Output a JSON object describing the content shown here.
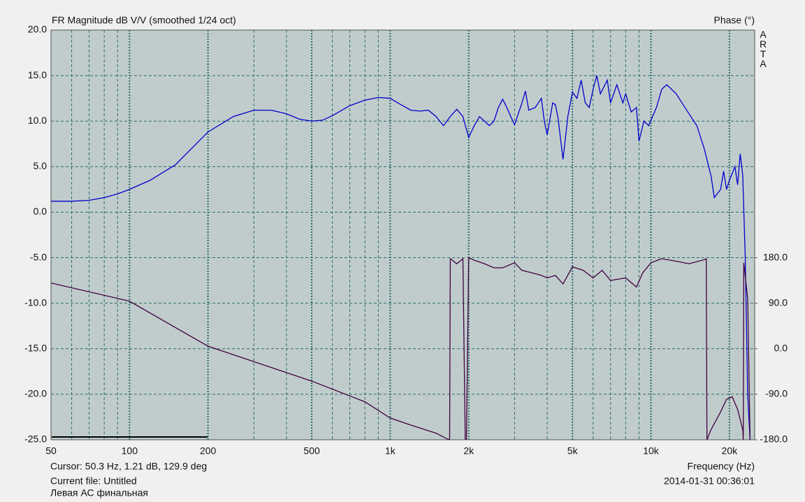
{
  "chart_data": {
    "type": "line",
    "title": "FR Magnitude dB V/V (smoothed 1/24 oct)",
    "y2_label": "Phase (°)",
    "x_label": "Frequency (Hz)",
    "brand": "ARTA",
    "cursor": "Cursor: 50.3 Hz, 1.21 dB, 129.9 deg",
    "file": "Current file: Untitled",
    "comment": "Левая АС финальная",
    "timestamp": "2014-01-31  00:36:01",
    "log_x": true,
    "grid": true,
    "xlim": [
      50,
      25000
    ],
    "xticks": [
      50,
      100,
      200,
      500,
      {
        "value": 1000,
        "label": "1k"
      },
      {
        "value": 2000,
        "label": "2k"
      },
      {
        "value": 5000,
        "label": "5k"
      },
      {
        "value": 10000,
        "label": "10k"
      },
      {
        "value": 20000,
        "label": "20k"
      }
    ],
    "xminorticks": [
      60,
      70,
      80,
      90,
      300,
      400,
      600,
      700,
      800,
      900,
      3000,
      4000,
      6000,
      7000,
      8000,
      9000
    ],
    "ylim": [
      -25,
      20
    ],
    "yticks": [
      {
        "value": 20,
        "label": "20.0"
      },
      {
        "value": 15,
        "label": "15.0"
      },
      {
        "value": 10,
        "label": "10.0"
      },
      {
        "value": 5,
        "label": "5.0"
      },
      {
        "value": 0,
        "label": "0.0"
      },
      {
        "value": -5,
        "label": "-5.0"
      },
      {
        "value": -10,
        "label": "-10.0"
      },
      {
        "value": -15,
        "label": "-15.0"
      },
      {
        "value": -20,
        "label": "-20.0"
      },
      {
        "value": -25,
        "label": "-25.0"
      }
    ],
    "y2lim": [
      -180,
      630
    ],
    "y2ticks": [
      {
        "value": 180,
        "label": "180.0"
      },
      {
        "value": 90,
        "label": "90.0"
      },
      {
        "value": 0,
        "label": "0.0"
      },
      {
        "value": -90,
        "label": "-90.0"
      },
      {
        "value": -180,
        "label": "-180.0"
      }
    ],
    "series": [
      {
        "color": "#0000cc",
        "x": [
          50,
          60,
          70,
          80,
          90,
          100,
          120,
          150,
          200,
          250,
          300,
          350,
          400,
          450,
          500,
          550,
          600,
          700,
          800,
          900,
          1000,
          1100,
          1200,
          1300,
          1400,
          1500,
          1600,
          1700,
          1800,
          1900,
          2000,
          2100,
          2200,
          2300,
          2400,
          2500,
          2600,
          2700,
          2800,
          2900,
          3000,
          3200,
          3300,
          3400,
          3600,
          3800,
          3900,
          4000,
          4200,
          4300,
          4400,
          4600,
          4800,
          5000,
          5200,
          5400,
          5600,
          5800,
          6000,
          6200,
          6400,
          6800,
          7000,
          7400,
          7800,
          8000,
          8400,
          8800,
          9000,
          9400,
          9800,
          10500,
          11000,
          11500,
          12500,
          13500,
          15000,
          16000,
          17000,
          17500,
          18500,
          19000,
          19500,
          20000,
          21000,
          21500,
          22000,
          22500,
          23000,
          23500,
          24000
        ],
        "values": [
          1.2,
          1.2,
          1.3,
          1.6,
          2.0,
          2.5,
          3.5,
          5.2,
          8.8,
          10.5,
          11.2,
          11.2,
          10.8,
          10.2,
          10.0,
          10.1,
          10.6,
          11.7,
          12.3,
          12.6,
          12.5,
          11.8,
          11.2,
          11.1,
          11.2,
          10.5,
          9.5,
          10.5,
          11.3,
          10.5,
          8.2,
          9.5,
          10.5,
          10.0,
          9.5,
          10.0,
          11.5,
          12.4,
          11.5,
          10.5,
          9.6,
          12.0,
          13.3,
          11.2,
          11.5,
          12.5,
          10.0,
          8.5,
          12.0,
          11.8,
          10.4,
          5.8,
          10.5,
          13.2,
          12.5,
          14.5,
          12.0,
          11.5,
          13.5,
          15.0,
          13.0,
          14.5,
          12.0,
          14.0,
          12.0,
          13.0,
          11.0,
          11.5,
          7.8,
          10.0,
          9.5,
          11.5,
          13.5,
          14.0,
          13.0,
          11.5,
          9.5,
          7.0,
          4.0,
          1.6,
          2.5,
          4.5,
          2.5,
          3.5,
          5.0,
          3.0,
          6.4,
          4.0,
          -5,
          -20,
          -25
        ]
      },
      {
        "color": "#400040",
        "axis": "y2",
        "x": [
          50,
          100,
          200,
          500,
          800,
          1000,
          1200,
          1500,
          1650,
          1690,
          1700,
          1800,
          1900,
          1940,
          1960,
          2000,
          2100,
          2300,
          2500,
          2700,
          3000,
          3200,
          3500,
          3800,
          4000,
          4300,
          4600,
          5000,
          5500,
          6000,
          6500,
          7000,
          8000,
          8800,
          9300,
          10000,
          11000,
          12500,
          14000,
          16000,
          16300,
          16400,
          17000,
          18500,
          19500,
          20500,
          21500,
          22500,
          22600,
          22700,
          23500,
          24000
        ],
        "values": [
          130,
          94,
          5,
          -64,
          -105,
          -137,
          -151,
          -167,
          -178,
          -180,
          178,
          168,
          178,
          -180,
          -180,
          180,
          175,
          168,
          160,
          160,
          170,
          155,
          150,
          145,
          140,
          145,
          128,
          162,
          155,
          140,
          155,
          135,
          140,
          122,
          150,
          170,
          178,
          173,
          168,
          176,
          178,
          -180,
          -160,
          -125,
          -100,
          -95,
          -120,
          -160,
          -180,
          170,
          100,
          -180
        ]
      }
    ]
  }
}
